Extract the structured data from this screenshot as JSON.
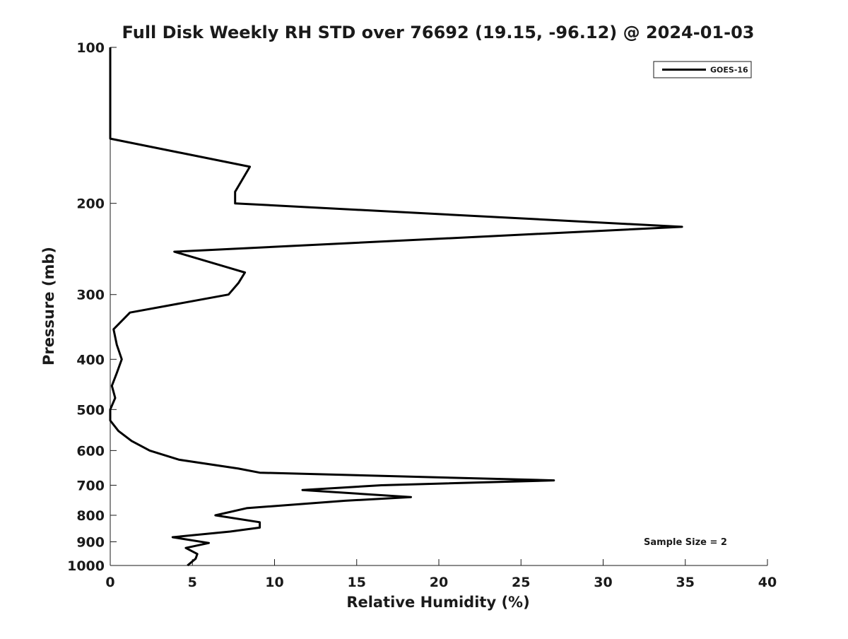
{
  "chart_data": {
    "type": "line",
    "title": "Full Disk Weekly RH STD over 76692 (19.15, -96.12) @ 2024-01-03",
    "xlabel": "Relative Humidity (%)",
    "ylabel": "Pressure (mb)",
    "xlim": [
      0,
      40
    ],
    "ylim": [
      100,
      1000
    ],
    "yscale": "log",
    "y_reversed": true,
    "xticks": [
      0,
      5,
      10,
      15,
      20,
      25,
      30,
      35,
      40
    ],
    "yticks": [
      100,
      200,
      300,
      400,
      500,
      600,
      700,
      800,
      900,
      1000
    ],
    "grid": false,
    "legend_position": "top-right",
    "series": [
      {
        "name": "GOES-16",
        "color": "#000000",
        "points": [
          [
            0.0,
            100
          ],
          [
            0.0,
            150
          ],
          [
            8.5,
            170
          ],
          [
            7.6,
            190
          ],
          [
            7.6,
            200
          ],
          [
            34.8,
            222
          ],
          [
            3.9,
            248
          ],
          [
            8.2,
            272
          ],
          [
            7.8,
            285
          ],
          [
            7.2,
            300
          ],
          [
            1.2,
            325
          ],
          [
            0.2,
            350
          ],
          [
            0.4,
            375
          ],
          [
            0.7,
            400
          ],
          [
            0.4,
            425
          ],
          [
            0.1,
            450
          ],
          [
            0.3,
            475
          ],
          [
            0.0,
            500
          ],
          [
            0.0,
            525
          ],
          [
            0.5,
            550
          ],
          [
            1.3,
            575
          ],
          [
            2.4,
            600
          ],
          [
            4.2,
            625
          ],
          [
            7.8,
            650
          ],
          [
            9.1,
            662
          ],
          [
            27.0,
            685
          ],
          [
            16.5,
            700
          ],
          [
            11.7,
            715
          ],
          [
            18.3,
            738
          ],
          [
            14.3,
            750
          ],
          [
            8.3,
            775
          ],
          [
            6.4,
            800
          ],
          [
            9.1,
            825
          ],
          [
            9.1,
            845
          ],
          [
            7.3,
            860
          ],
          [
            3.8,
            882
          ],
          [
            6.0,
            905
          ],
          [
            4.6,
            925
          ],
          [
            5.3,
            950
          ],
          [
            5.2,
            970
          ],
          [
            4.7,
            1000
          ]
        ]
      }
    ],
    "annotations": [
      "Sample Size = 2"
    ]
  }
}
